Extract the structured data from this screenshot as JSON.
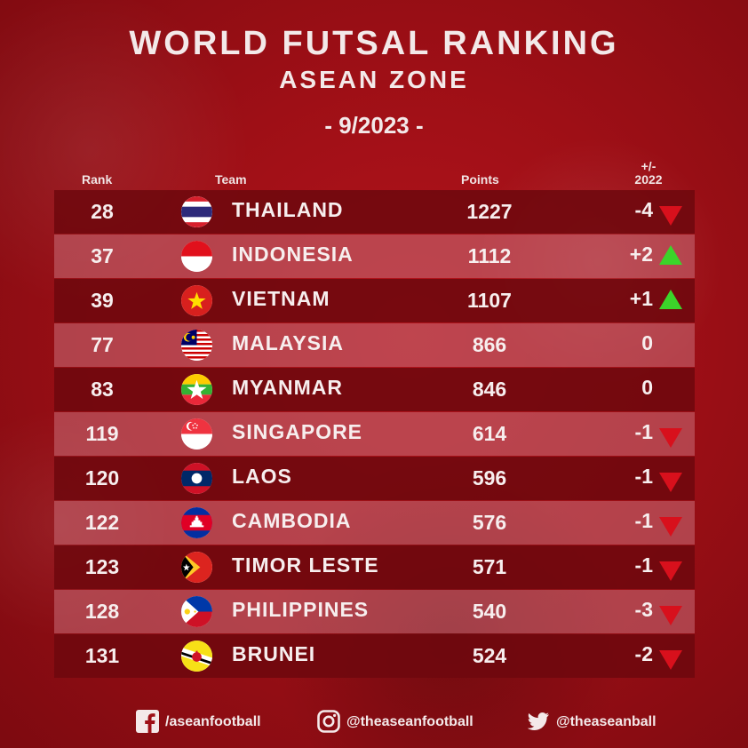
{
  "header": {
    "title": "WORLD FUTSAL RANKING",
    "subtitle": "ASEAN ZONE",
    "date": "- 9/2023 -"
  },
  "columns": {
    "rank": "Rank",
    "team": "Team",
    "points": "Points",
    "change_line1": "+/-",
    "change_line2": "2022"
  },
  "rows": [
    {
      "rank": "28",
      "team": "THAILAND",
      "points": "1227",
      "change": "-4",
      "trend": "down",
      "flag": "thailand-flag-icon"
    },
    {
      "rank": "37",
      "team": "INDONESIA",
      "points": "1112",
      "change": "+2",
      "trend": "up",
      "flag": "indonesia-flag-icon"
    },
    {
      "rank": "39",
      "team": "VIETNAM",
      "points": "1107",
      "change": "+1",
      "trend": "up",
      "flag": "vietnam-flag-icon"
    },
    {
      "rank": "77",
      "team": "MALAYSIA",
      "points": "866",
      "change": "0",
      "trend": "none",
      "flag": "malaysia-flag-icon"
    },
    {
      "rank": "83",
      "team": "MYANMAR",
      "points": "846",
      "change": "0",
      "trend": "none",
      "flag": "myanmar-flag-icon"
    },
    {
      "rank": "119",
      "team": "SINGAPORE",
      "points": "614",
      "change": "-1",
      "trend": "down",
      "flag": "singapore-flag-icon"
    },
    {
      "rank": "120",
      "team": "LAOS",
      "points": "596",
      "change": "-1",
      "trend": "down",
      "flag": "laos-flag-icon"
    },
    {
      "rank": "122",
      "team": "CAMBODIA",
      "points": "576",
      "change": "-1",
      "trend": "down",
      "flag": "cambodia-flag-icon"
    },
    {
      "rank": "123",
      "team": "TIMOR LESTE",
      "points": "571",
      "change": "-1",
      "trend": "down",
      "flag": "timor-leste-flag-icon"
    },
    {
      "rank": "128",
      "team": "PHILIPPINES",
      "points": "540",
      "change": "-3",
      "trend": "down",
      "flag": "philippines-flag-icon"
    },
    {
      "rank": "131",
      "team": "BRUNEI",
      "points": "524",
      "change": "-2",
      "trend": "down",
      "flag": "brunei-flag-icon"
    }
  ],
  "colors": {
    "up": "#3cd42a",
    "down": "#d8101c"
  },
  "footer": {
    "facebook": "/aseanfootball",
    "instagram": "@theaseanfootball",
    "twitter": "@theaseanball"
  }
}
